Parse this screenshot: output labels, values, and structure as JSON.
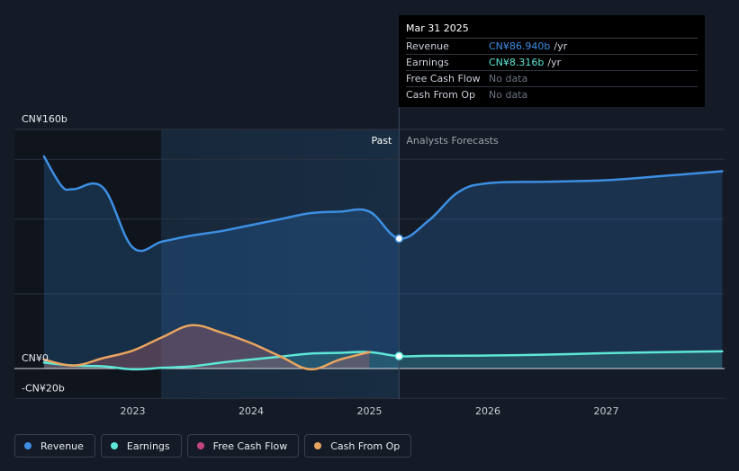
{
  "tooltip": {
    "date": "Mar 31 2025",
    "rows": [
      {
        "label": "Revenue",
        "value": "CN¥86.940b",
        "unit": "/yr",
        "color": "#3d8fe3"
      },
      {
        "label": "Earnings",
        "value": "CN¥8.316b",
        "unit": "/yr",
        "color": "#5ee7d6"
      },
      {
        "label": "Free Cash Flow",
        "value": "No data",
        "unit": "",
        "color": ""
      },
      {
        "label": "Cash From Op",
        "value": "No data",
        "unit": "",
        "color": ""
      }
    ]
  },
  "legend": [
    {
      "label": "Revenue",
      "color": "#3d8fe3"
    },
    {
      "label": "Earnings",
      "color": "#5ee7d6"
    },
    {
      "label": "Free Cash Flow",
      "color": "#c2457f"
    },
    {
      "label": "Cash From Op",
      "color": "#e8a55f"
    }
  ],
  "chart_data": {
    "type": "line",
    "title": "",
    "y_unit": "CN¥b",
    "ylim": [
      -20,
      160
    ],
    "y_tick_labels": [
      {
        "value": 160,
        "label": "CN¥160b"
      },
      {
        "value": 0,
        "label": "CN¥0"
      },
      {
        "value": -20,
        "label": "-CN¥20b"
      }
    ],
    "x_ticks": [
      2023,
      2024,
      2025,
      2026,
      2027
    ],
    "xlim": [
      2022.24,
      2027.98
    ],
    "past_label": "Past",
    "forecast_label": "Analysts Forecasts",
    "past_start": 2023.24,
    "divider": 2025.25,
    "series": [
      {
        "name": "Revenue",
        "color": "#3d8fe3",
        "fill": true,
        "points": [
          [
            2022.25,
            142
          ],
          [
            2022.4,
            122
          ],
          [
            2022.5,
            120
          ],
          [
            2022.75,
            121
          ],
          [
            2023.0,
            81
          ],
          [
            2023.25,
            85
          ],
          [
            2023.5,
            89
          ],
          [
            2023.75,
            92
          ],
          [
            2024.0,
            96
          ],
          [
            2024.25,
            100
          ],
          [
            2024.5,
            104
          ],
          [
            2024.75,
            105
          ],
          [
            2025.0,
            105
          ],
          [
            2025.25,
            87
          ],
          [
            2025.5,
            99
          ],
          [
            2025.75,
            118
          ],
          [
            2026.0,
            124
          ],
          [
            2026.5,
            125
          ],
          [
            2027.0,
            126
          ],
          [
            2027.5,
            129
          ],
          [
            2027.98,
            132
          ]
        ]
      },
      {
        "name": "Earnings",
        "color": "#5ee7d6",
        "fill": true,
        "points": [
          [
            2022.25,
            4
          ],
          [
            2022.5,
            2
          ],
          [
            2022.75,
            1.5
          ],
          [
            2023.0,
            -0.5
          ],
          [
            2023.25,
            0.5
          ],
          [
            2023.5,
            1.5
          ],
          [
            2023.75,
            4
          ],
          [
            2024.0,
            6
          ],
          [
            2024.25,
            8
          ],
          [
            2024.5,
            10
          ],
          [
            2024.75,
            10.5
          ],
          [
            2025.0,
            11
          ],
          [
            2025.25,
            8.3
          ],
          [
            2025.5,
            8.5
          ],
          [
            2026.0,
            8.7
          ],
          [
            2026.5,
            9.3
          ],
          [
            2027.0,
            10.3
          ],
          [
            2027.5,
            11
          ],
          [
            2027.98,
            11.5
          ]
        ]
      },
      {
        "name": "Cash From Op",
        "color": "#e8a55f",
        "fill": true,
        "points": [
          [
            2022.25,
            6
          ],
          [
            2022.5,
            2
          ],
          [
            2022.75,
            7
          ],
          [
            2023.0,
            12
          ],
          [
            2023.25,
            21
          ],
          [
            2023.5,
            29
          ],
          [
            2023.75,
            24
          ],
          [
            2024.0,
            17
          ],
          [
            2024.25,
            8
          ],
          [
            2024.5,
            -0.5
          ],
          [
            2024.75,
            6
          ],
          [
            2025.0,
            11
          ]
        ]
      }
    ],
    "highlight_points": [
      {
        "series": "Revenue",
        "x": 2025.25,
        "y": 86.94
      },
      {
        "series": "Earnings",
        "x": 2025.25,
        "y": 8.316
      }
    ]
  }
}
